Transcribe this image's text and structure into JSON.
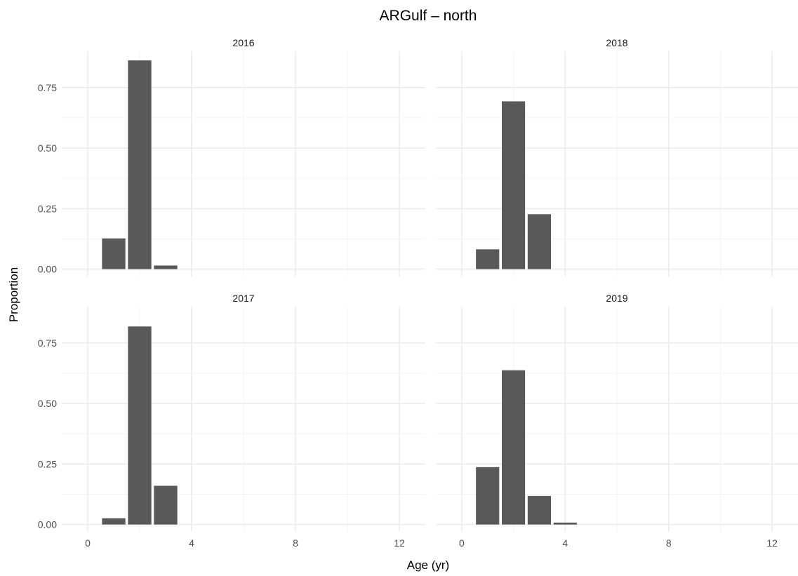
{
  "chart_data": {
    "type": "bar",
    "title": "ARGulf – north",
    "xlabel": "Age (yr)",
    "ylabel": "Proportion",
    "x_ticks": [
      0,
      4,
      8,
      12
    ],
    "x_tick_labels": [
      "0",
      "4",
      "8",
      "12"
    ],
    "y_ticks": [
      0,
      0.25,
      0.5,
      0.75
    ],
    "y_tick_labels": [
      "0.00",
      "0.25",
      "0.50",
      "0.75"
    ],
    "xlim": [
      -1,
      13
    ],
    "ylim": [
      -0.03,
      0.9
    ],
    "grid": true,
    "facet_layout": "2x2",
    "panels": [
      {
        "label": "2016",
        "x": [
          1,
          2,
          3
        ],
        "values": [
          0.127,
          0.862,
          0.015
        ]
      },
      {
        "label": "2018",
        "x": [
          1,
          2,
          3
        ],
        "values": [
          0.082,
          0.693,
          0.227
        ]
      },
      {
        "label": "2017",
        "x": [
          1,
          2,
          3
        ],
        "values": [
          0.026,
          0.818,
          0.16
        ]
      },
      {
        "label": "2019",
        "x": [
          1,
          2,
          3,
          4
        ],
        "values": [
          0.237,
          0.637,
          0.118,
          0.008
        ]
      }
    ]
  }
}
